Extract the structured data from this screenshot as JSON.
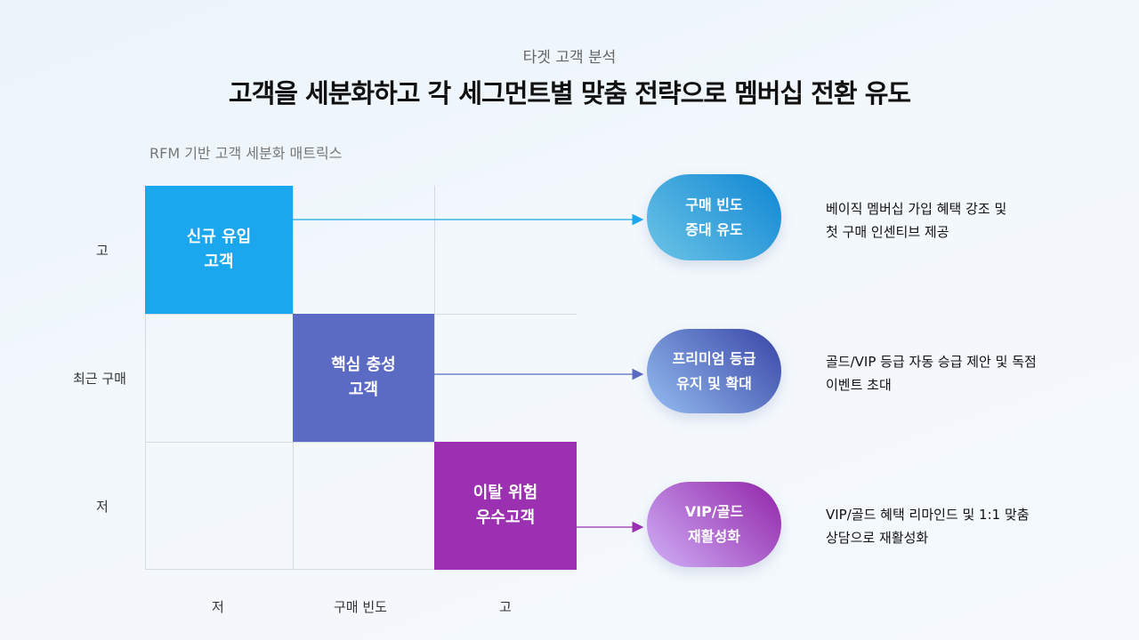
{
  "header": {
    "eyebrow": "타겟 고객 분석",
    "title": "고객을 세분화하고 각 세그먼트별 맞춤 전략으로 멤버십 전환 유도"
  },
  "matrix": {
    "title": "RFM 기반 고객 세분화 매트릭스",
    "y_axis": {
      "label": "최근 구매",
      "high": "고",
      "low": "저"
    },
    "x_axis": {
      "label": "구매 빈도",
      "low": "저",
      "high": "고"
    },
    "segments": [
      {
        "label": "신규 유입\n고객",
        "color": "#1aa7ee"
      },
      {
        "label": "핵심 충성\n고객",
        "color": "#5b6bc4"
      },
      {
        "label": "이탈 위험\n우수고객",
        "color": "#9b30b0"
      }
    ]
  },
  "strategies": [
    {
      "title": "구매 빈도\n증대 유도",
      "desc": "베이직 멤버십 가입 혜택 강조 및\n첫 구매 인센티브 제공",
      "color": "#1aa7ee"
    },
    {
      "title": "프리미엄 등급\n유지 및 확대",
      "desc": "골드/VIP 등급 자동 승급 제안 및 독점\n이벤트 초대",
      "color": "#5b6bc4"
    },
    {
      "title": "VIP/골드\n재활성화",
      "desc": "VIP/골드 혜택 리마인드 및 1:1 맞춤\n상담으로 재활성화",
      "color": "#9b30b0"
    }
  ]
}
